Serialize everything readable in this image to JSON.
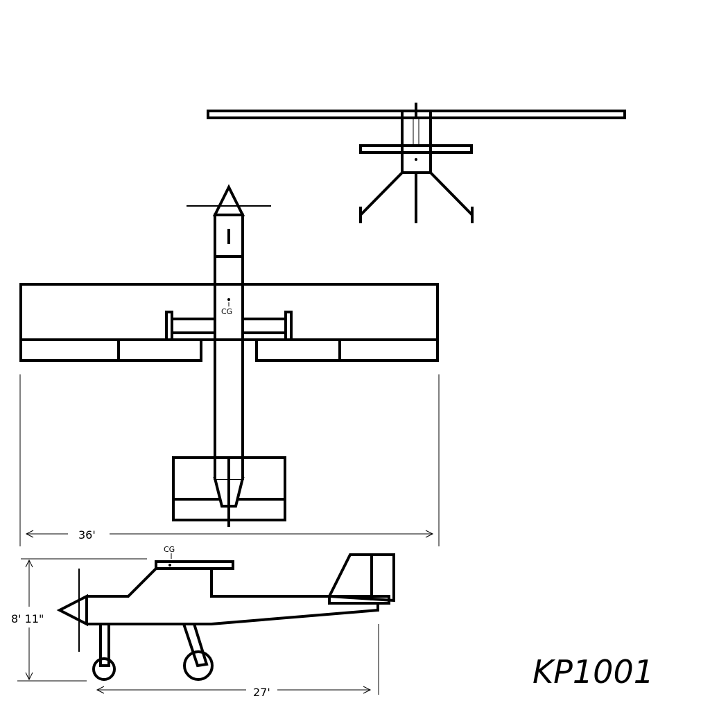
{
  "views": {
    "front": {
      "name": "front-view"
    },
    "top": {
      "name": "top-view"
    },
    "side": {
      "name": "side-view"
    }
  },
  "labels": {
    "cg_top": "CG",
    "cg_side": "CG"
  },
  "dimensions": {
    "wingspan": "36'",
    "length": "27'",
    "height": "8' 11\""
  },
  "signature": "KP1001",
  "colors": {
    "line": "#000000",
    "background": "#ffffff"
  }
}
